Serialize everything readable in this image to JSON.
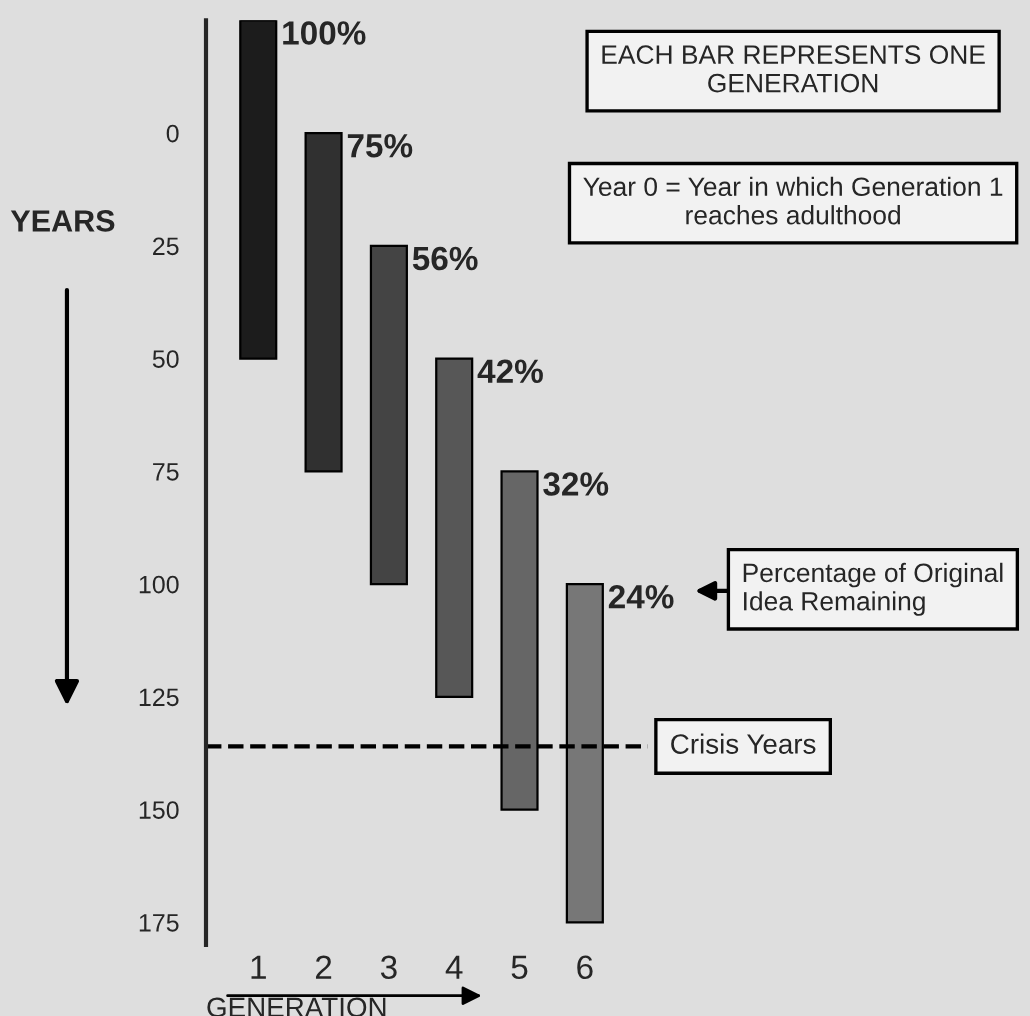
{
  "chart_data": {
    "type": "bar",
    "categories": [
      "1",
      "2",
      "3",
      "4",
      "5",
      "6"
    ],
    "values": [
      75,
      75,
      75,
      75,
      75,
      75
    ],
    "base": [
      -25,
      0,
      25,
      50,
      75,
      100
    ],
    "colors": [
      "#1c1c1c",
      "#303030",
      "#444444",
      "#575757",
      "#666666",
      "#777777"
    ],
    "ylim": [
      180,
      -25
    ],
    "yticks": [
      0,
      25,
      50,
      75,
      100,
      125,
      150,
      175
    ],
    "xlabel": "GENERATION",
    "ylabel": "YEARS",
    "ref_lines": [
      {
        "axis": "y",
        "value": 136,
        "label": "Crisis Years",
        "line_style": "dashed",
        "color": "#000000"
      }
    ],
    "annotations": [
      "EACH BAR REPRESENTS ONE GENERATION",
      "Year 0 = Year in which Generation 1 reaches adulthood",
      "Percentage of Original Idea Remaining",
      {
        "text": "100%",
        "x": "1",
        "y": -25
      },
      {
        "text": "75%",
        "x": "2",
        "y": 0
      },
      {
        "text": "56%",
        "x": "3",
        "y": 25
      },
      {
        "text": "42%",
        "x": "4",
        "y": 50
      },
      {
        "text": "32%",
        "x": "5",
        "y": 75
      },
      {
        "text": "24%",
        "x": "6",
        "y": 100
      }
    ],
    "grid": false,
    "legend": false
  }
}
